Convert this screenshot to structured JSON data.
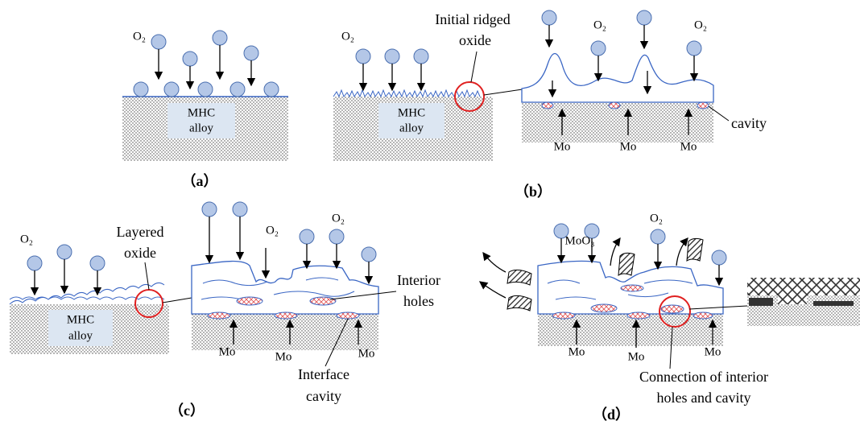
{
  "panels": [
    {
      "caption": "（a）",
      "o2_labels": [
        "O₂"
      ],
      "alloy": [
        "MHC",
        "alloy"
      ]
    },
    {
      "caption": "（b）",
      "o2_labels": [
        "O₂",
        "O₂",
        "O₂"
      ],
      "callout": [
        "Initial ridged",
        "oxide"
      ],
      "alloy": [
        "MHC",
        "alloy"
      ],
      "cavity": "cavity",
      "mo_labels": [
        "Mo",
        "Mo",
        "Mo"
      ]
    },
    {
      "caption": "（c）",
      "o2_labels": [
        "O₂",
        "O₂",
        "O₂"
      ],
      "callout": [
        "Layered",
        "oxide"
      ],
      "alloy": [
        "MHC",
        "alloy"
      ],
      "interior": [
        "Interior",
        "holes"
      ],
      "interface": [
        "Interface",
        "cavity"
      ],
      "mo_labels": [
        "Mo",
        "Mo",
        "Mo"
      ]
    },
    {
      "caption": "（d）",
      "o2_labels": [
        "O₂"
      ],
      "gas": "MoO₃",
      "connection": [
        "Connection of interior",
        "holes and cavity"
      ],
      "mo_labels": [
        "Mo",
        "Mo",
        "Mo"
      ]
    }
  ]
}
